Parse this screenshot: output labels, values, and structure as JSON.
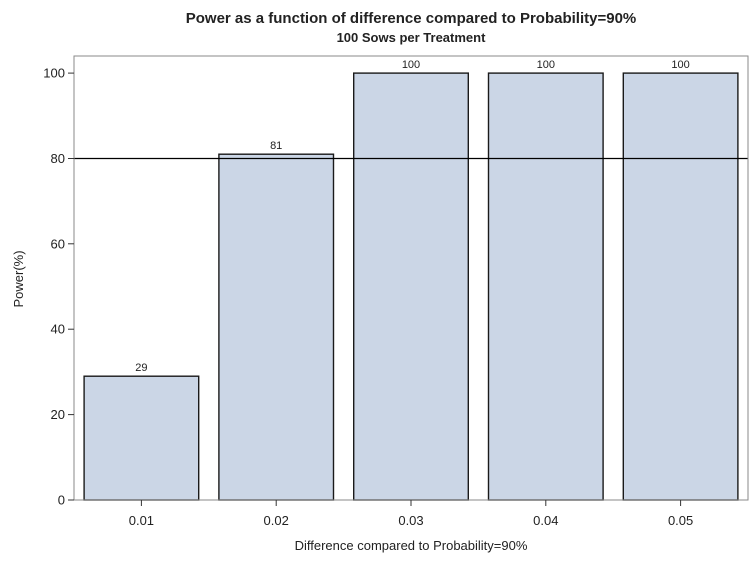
{
  "chart_data": {
    "type": "bar",
    "title": "Power as a function of difference compared to Probability=90%",
    "subtitle": "100 Sows per Treatment",
    "xlabel": "Difference compared to Probability=90%",
    "ylabel": "Power(%)",
    "categories": [
      "0.01",
      "0.02",
      "0.03",
      "0.04",
      "0.05"
    ],
    "values": [
      29,
      81,
      100,
      100,
      100
    ],
    "data_labels": [
      "29",
      "81",
      "100",
      "100",
      "100"
    ],
    "ylim": [
      0,
      104
    ],
    "yticks": [
      0,
      20,
      40,
      60,
      80,
      100
    ],
    "ytick_labels": [
      "0",
      "20",
      "40",
      "60",
      "80",
      "100"
    ],
    "reference_line": {
      "y": 80
    },
    "grid": false,
    "legend": "none",
    "colors": {
      "bar_fill": "#cbd6e6",
      "bar_stroke": "#1a1a1a",
      "reference_line": "#000000",
      "frame": "#8a8a8a"
    }
  }
}
